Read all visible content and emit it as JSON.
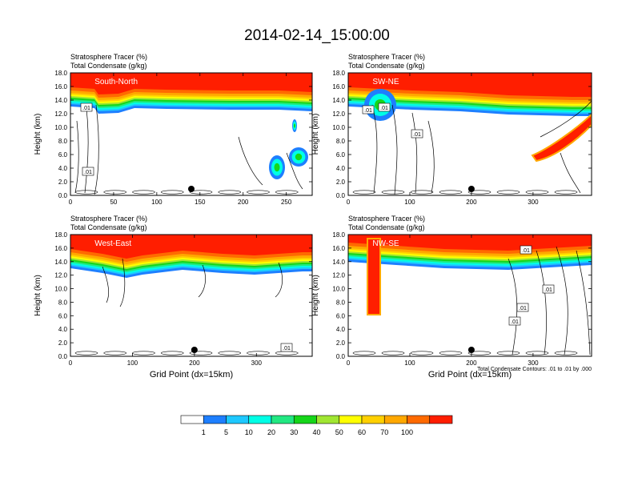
{
  "title": "2014-02-14_15:00:00",
  "colorbar": {
    "colors": [
      "#ffffff",
      "#1e7fff",
      "#1ec8ff",
      "#00ffe6",
      "#22e882",
      "#16d61a",
      "#a0e632",
      "#ffff00",
      "#ffd000",
      "#ffa800",
      "#ff6a00",
      "#ff1e00"
    ],
    "labels": [
      "1",
      "5",
      "10",
      "20",
      "30",
      "40",
      "50",
      "60",
      "70",
      "100"
    ]
  },
  "chart_data": [
    {
      "type": "contour",
      "label": "South-North",
      "title_lines": [
        "Stratosphere Tracer   (%)",
        "Total Condensate   (g/kg)"
      ],
      "ylabel": "Height (km)",
      "ylim": [
        0,
        18
      ],
      "yticks": [
        "0.0",
        "2.0",
        "4.0",
        "6.0",
        "8.0",
        "10.0",
        "12.0",
        "14.0",
        "16.0",
        "18.0"
      ],
      "xlim": [
        0,
        280
      ],
      "xticks": [
        0,
        50,
        100,
        150,
        200,
        250
      ],
      "contour_labels": [
        ".01",
        ".01"
      ],
      "marker_x": 140
    },
    {
      "type": "contour",
      "label": "SW-NE",
      "title_lines": [
        "Stratosphere Tracer   (%)",
        "Total Condensate   (g/kg)"
      ],
      "ylabel": "Height (km)",
      "ylim": [
        0,
        18
      ],
      "yticks": [
        "0.0",
        "2.0",
        "4.0",
        "6.0",
        "8.0",
        "10.0",
        "12.0",
        "14.0",
        "16.0",
        "18.0"
      ],
      "xlim": [
        0,
        395
      ],
      "xticks": [
        0,
        100,
        200,
        300
      ],
      "contour_labels": [
        ".01",
        ".01",
        ".01"
      ],
      "marker_x": 200
    },
    {
      "type": "contour",
      "label": "West-East",
      "title_lines": [
        "Stratosphere Tracer   (%)",
        "Total Condensate   (g/kg)"
      ],
      "ylabel": "Height (km)",
      "xlabel": "Grid Point (dx=15km)",
      "ylim": [
        0,
        18
      ],
      "yticks": [
        "0.0",
        "2.0",
        "4.0",
        "6.0",
        "8.0",
        "10.0",
        "12.0",
        "14.0",
        "16.0",
        "18.0"
      ],
      "xlim": [
        0,
        390
      ],
      "xticks": [
        0,
        100,
        200,
        300
      ],
      "contour_labels": [
        ".01"
      ],
      "marker_x": 200
    },
    {
      "type": "contour",
      "label": "NW-SE",
      "title_lines": [
        "Stratosphere Tracer   (%)",
        "Total Condensate   (g/kg)"
      ],
      "ylabel": "Height (km)",
      "xlabel": "Grid Point (dx=15km)",
      "ylim": [
        0,
        18
      ],
      "yticks": [
        "0.0",
        "2.0",
        "4.0",
        "6.0",
        "8.0",
        "10.0",
        "12.0",
        "14.0",
        "16.0",
        "18.0"
      ],
      "xlim": [
        0,
        395
      ],
      "xticks": [
        0,
        100,
        200,
        300
      ],
      "contour_labels": [
        ".01",
        ".01",
        ".01",
        ".01"
      ],
      "marker_x": 200,
      "footnote": "Total Condensate Contours: .01 to .01 by .000"
    }
  ]
}
